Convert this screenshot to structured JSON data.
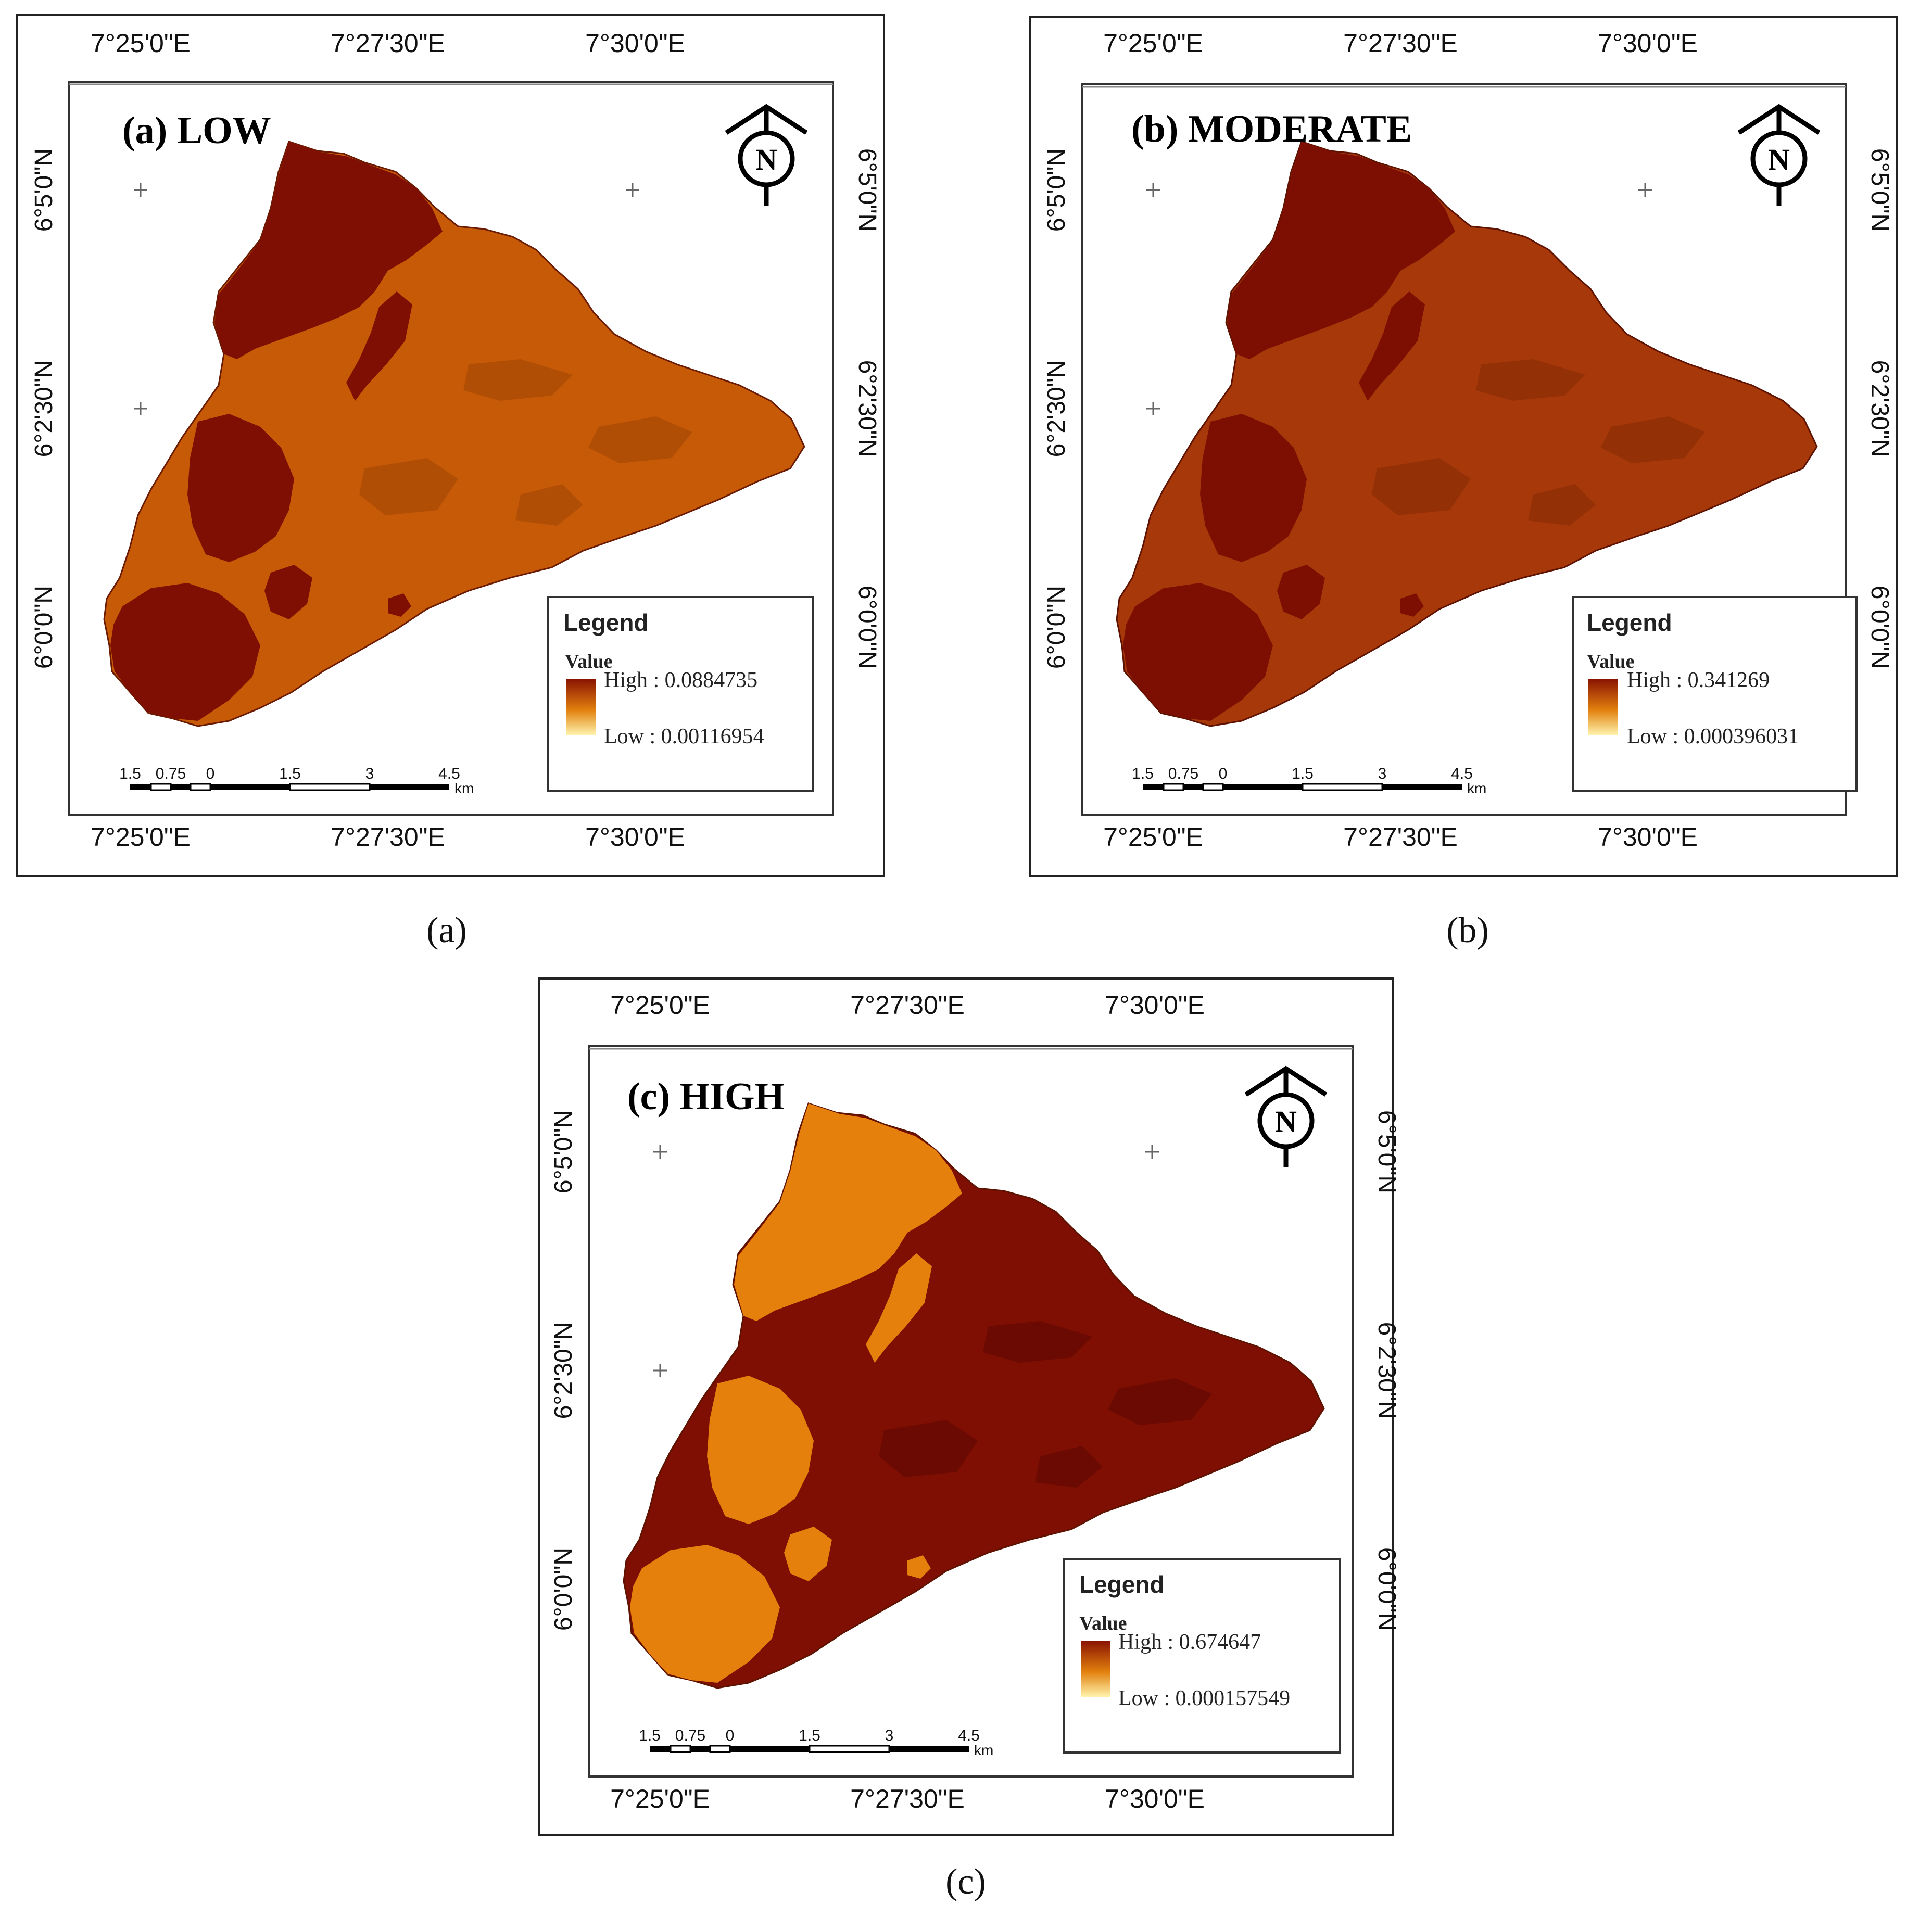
{
  "figure": {
    "panels": [
      {
        "id": "a",
        "title": "(a) LOW",
        "caption": "(a)",
        "legend": {
          "heading": "Legend",
          "value_label": "Value",
          "high": "High : 0.0884735",
          "low": "Low : 0.00116954"
        },
        "palette": {
          "base": "#c65a06",
          "patch": "#7e0f02",
          "texture": "#b14e05"
        }
      },
      {
        "id": "b",
        "title": "(b) MODERATE",
        "caption": "(b)",
        "legend": {
          "heading": "Legend",
          "value_label": "Value",
          "high": "High : 0.341269",
          "low": "Low : 0.000396031"
        },
        "palette": {
          "base": "#a6380a",
          "patch": "#7c0f02",
          "texture": "#933005"
        }
      },
      {
        "id": "c",
        "title": "(c) HIGH",
        "caption": "(c)",
        "legend": {
          "heading": "Legend",
          "value_label": "Value",
          "high": "High : 0.674647",
          "low": "Low : 0.000157549"
        },
        "palette": {
          "base": "#7e0f02",
          "patch": "#e6800c",
          "texture": "#6a0a02"
        }
      }
    ],
    "lon_labels": [
      "7°25'0\"E",
      "7°27'30\"E",
      "7°30'0\"E"
    ],
    "lat_labels": [
      "6°5'0\"N",
      "6°2'30\"N",
      "6°0'0\"N"
    ],
    "scale_bar": {
      "labels": [
        "1.5",
        "0.75",
        "0",
        "1.5",
        "3",
        "4.5"
      ],
      "unit": "km"
    },
    "north_arrow_letter": "N",
    "legend_ramp": {
      "high_color": "#8a1402",
      "mid_color": "#e2810e",
      "low_color": "#fff6b0"
    }
  }
}
